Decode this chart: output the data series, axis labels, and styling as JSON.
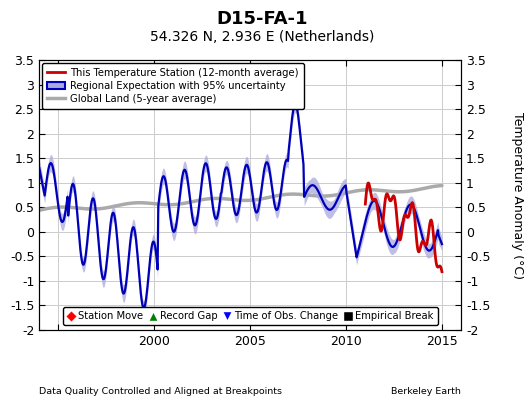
{
  "title": "D15-FA-1",
  "subtitle": "54.326 N, 2.936 E (Netherlands)",
  "ylabel": "Temperature Anomaly (°C)",
  "xlabel_left": "Data Quality Controlled and Aligned at Breakpoints",
  "xlabel_right": "Berkeley Earth",
  "ylim": [
    -2.0,
    3.5
  ],
  "xlim": [
    1994.0,
    2016.0
  ],
  "yticks": [
    -2,
    -1.5,
    -1,
    -0.5,
    0,
    0.5,
    1,
    1.5,
    2,
    2.5,
    3,
    3.5
  ],
  "xticks": [
    1995,
    2000,
    2005,
    2010,
    2015
  ],
  "xtick_labels": [
    "",
    "2000",
    "2005",
    "2010",
    "2015"
  ],
  "legend1_labels": [
    "This Temperature Station (12-month average)",
    "Regional Expectation with 95% uncertainty",
    "Global Land (5-year average)"
  ],
  "legend2_labels": [
    "Station Move",
    "Record Gap",
    "Time of Obs. Change",
    "Empirical Break"
  ],
  "red_line_color": "#cc0000",
  "blue_line_color": "#0000bb",
  "blue_fill_color": "#aaaadd",
  "gray_line_color": "#aaaaaa",
  "background_color": "#ffffff",
  "grid_color": "#cccccc",
  "title_fontsize": 13,
  "subtitle_fontsize": 10,
  "tick_fontsize": 9,
  "label_fontsize": 8
}
